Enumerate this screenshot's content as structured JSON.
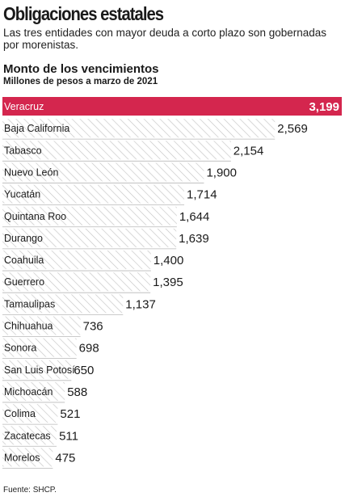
{
  "header": {
    "title": "Obligaciones estatales",
    "subtitle": "Las tres entidades con mayor deuda a corto plazo son gobernadas por morenistas."
  },
  "chart_data": {
    "type": "bar",
    "orientation": "horizontal",
    "title": "Monto de los vencimientos",
    "subtitle": "Millones de pesos a marzo de 2021",
    "categories": [
      "Veracruz",
      "Baja California",
      "Tabasco",
      "Nuevo León",
      "Yucatán",
      "Quintana Roo",
      "Durango",
      "Coahuila",
      "Guerrero",
      "Tamaulipas",
      "Chihuahua",
      "Sonora",
      "San Luis Potosí",
      "Michoacán",
      "Colima",
      "Zacatecas",
      "Morelos"
    ],
    "values": [
      3199,
      2569,
      2154,
      1900,
      1714,
      1644,
      1639,
      1400,
      1395,
      1137,
      736,
      698,
      650,
      588,
      521,
      511,
      475
    ],
    "value_labels": [
      "3,199",
      "2,569",
      "2,154",
      "1,900",
      "1,714",
      "1,644",
      "1,639",
      "1,400",
      "1,395",
      "1,137",
      "736",
      "698",
      "650",
      "588",
      "521",
      "511",
      "475"
    ],
    "highlight": "Veracruz",
    "colors": {
      "highlight": "#d4264e",
      "hatch": "#c4c4c4",
      "divider": "#b8b8b8",
      "text": "#1a1a1a"
    },
    "grid": false,
    "legend": "none"
  },
  "footer": {
    "source": "Fuente: SHCP."
  }
}
